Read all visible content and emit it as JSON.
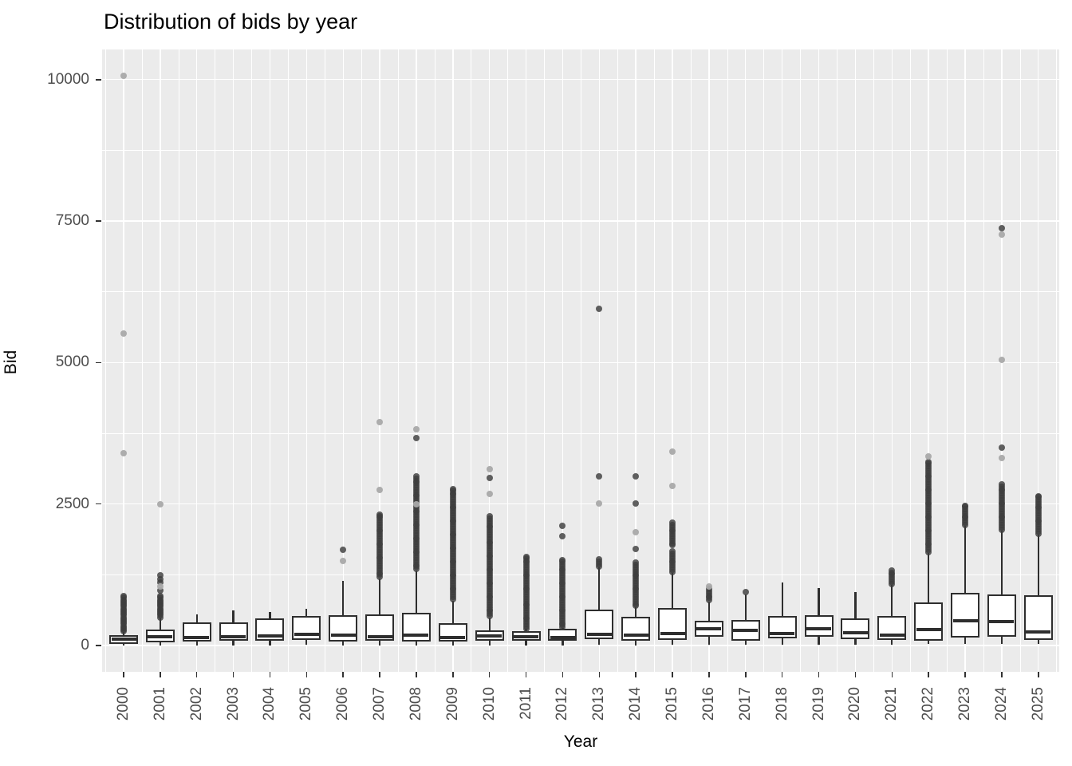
{
  "title": "Distribution of bids by year",
  "x_axis": {
    "label": "Year"
  },
  "y_axis": {
    "label": "Bid"
  },
  "colors": {
    "panel_bg": "#ebebeb",
    "grid": "#ffffff",
    "box_border": "#2e2e2e",
    "box_fill": "#ffffff",
    "outlier_dark": "#3d3d3d",
    "outlier_light": "#a9a9a9",
    "tick_label": "#4d4d4d",
    "title_text": "#000000"
  },
  "chart_data": {
    "type": "boxplot",
    "title": "Distribution of bids by year",
    "xlabel": "Year",
    "ylabel": "Bid",
    "ylim": [
      0,
      10100
    ],
    "grid": "on",
    "y_ticks": [
      0,
      2500,
      5000,
      7500,
      10000
    ],
    "y_tick_labels": [
      "0",
      "2500",
      "5000",
      "7500",
      "10000"
    ],
    "y_minor_ticks": [
      1250,
      3750,
      6250,
      8750
    ],
    "categories": [
      "2000",
      "2001",
      "2002",
      "2003",
      "2004",
      "2005",
      "2006",
      "2007",
      "2008",
      "2009",
      "2010",
      "2011",
      "2012",
      "2013",
      "2014",
      "2015",
      "2016",
      "2017",
      "2018",
      "2019",
      "2020",
      "2021",
      "2022",
      "2023",
      "2024",
      "2025"
    ],
    "boxes": [
      {
        "year": "2000",
        "q1": 25,
        "median": 115,
        "q3": 180,
        "whisker_low": 0,
        "whisker_high": 240,
        "outliers": [
          250,
          281,
          312,
          343,
          374,
          405,
          436,
          467,
          498,
          529,
          560,
          591,
          622,
          653,
          684,
          715,
          746,
          777,
          808,
          839,
          870
        ],
        "outliers_light": [
          3405,
          5520,
          10070
        ]
      },
      {
        "year": "2001",
        "q1": 55,
        "median": 155,
        "q3": 280,
        "whisker_low": 5,
        "whisker_high": 490,
        "outliers": [
          500,
          531,
          562,
          593,
          624,
          655,
          686,
          717,
          748,
          779,
          810,
          841,
          872,
          975,
          1110,
          1175,
          1245
        ],
        "outliers_light": [
          1045,
          2490
        ]
      },
      {
        "year": "2002",
        "q1": 70,
        "median": 135,
        "q3": 405,
        "whisker_low": 5,
        "whisker_high": 550,
        "outliers": [],
        "outliers_light": []
      },
      {
        "year": "2003",
        "q1": 85,
        "median": 150,
        "q3": 415,
        "whisker_low": 5,
        "whisker_high": 620,
        "outliers": [],
        "outliers_light": []
      },
      {
        "year": "2004",
        "q1": 90,
        "median": 170,
        "q3": 480,
        "whisker_low": 5,
        "whisker_high": 590,
        "outliers": [],
        "outliers_light": []
      },
      {
        "year": "2005",
        "q1": 100,
        "median": 195,
        "q3": 520,
        "whisker_low": 10,
        "whisker_high": 650,
        "outliers": [],
        "outliers_light": []
      },
      {
        "year": "2006",
        "q1": 75,
        "median": 185,
        "q3": 530,
        "whisker_low": 5,
        "whisker_high": 1140,
        "outliers": [
          1690
        ],
        "outliers_light": [
          1500
        ]
      },
      {
        "year": "2007",
        "q1": 90,
        "median": 150,
        "q3": 550,
        "whisker_low": 5,
        "whisker_high": 1190,
        "outliers": [
          1210,
          1250,
          1290,
          1330,
          1370,
          1410,
          1450,
          1490,
          1530,
          1570,
          1610,
          1650,
          1690,
          1730,
          1770,
          1810,
          1850,
          1890,
          1930,
          1970,
          2010,
          2050,
          2090,
          2130,
          2170,
          2210,
          2250,
          2290,
          2310
        ],
        "outliers_light": [
          2755,
          3945
        ]
      },
      {
        "year": "2008",
        "q1": 70,
        "median": 185,
        "q3": 580,
        "whisker_low": 5,
        "whisker_high": 1330,
        "outliers": [
          1350,
          1390,
          1430,
          1470,
          1510,
          1550,
          1590,
          1630,
          1670,
          1710,
          1750,
          1790,
          1830,
          1870,
          1910,
          1950,
          1990,
          2030,
          2070,
          2110,
          2150,
          2190,
          2230,
          2270,
          2310,
          2350,
          2390,
          2430,
          2470,
          2510,
          2550,
          2590,
          2630,
          2670,
          2710,
          2750,
          2790,
          2830,
          2870,
          2910,
          2950,
          2990,
          3670
        ],
        "outliers_light": [
          2500,
          3825
        ]
      },
      {
        "year": "2009",
        "q1": 75,
        "median": 135,
        "q3": 400,
        "whisker_low": 5,
        "whisker_high": 790,
        "outliers": [
          820,
          860,
          900,
          940,
          980,
          1020,
          1060,
          1100,
          1140,
          1180,
          1220,
          1260,
          1300,
          1340,
          1380,
          1420,
          1460,
          1500,
          1540,
          1580,
          1620,
          1660,
          1700,
          1740,
          1780,
          1820,
          1860,
          1900,
          1940,
          1980,
          2020,
          2060,
          2100,
          2140,
          2180,
          2220,
          2260,
          2300,
          2340,
          2380,
          2420,
          2460,
          2500,
          2540,
          2580,
          2620,
          2660,
          2700,
          2740,
          2760
        ],
        "outliers_light": []
      },
      {
        "year": "2010",
        "q1": 85,
        "median": 165,
        "q3": 265,
        "whisker_low": 5,
        "whisker_high": 500,
        "outliers": [
          520,
          560,
          600,
          640,
          680,
          720,
          760,
          800,
          840,
          880,
          920,
          960,
          1000,
          1040,
          1080,
          1120,
          1160,
          1200,
          1240,
          1280,
          1320,
          1360,
          1400,
          1440,
          1480,
          1520,
          1560,
          1600,
          1640,
          1680,
          1720,
          1760,
          1800,
          1840,
          1880,
          1920,
          1960,
          2000,
          2040,
          2080,
          2120,
          2160,
          2200,
          2240,
          2280,
          2955
        ],
        "outliers_light": [
          2685,
          3115
        ]
      },
      {
        "year": "2011",
        "q1": 85,
        "median": 155,
        "q3": 255,
        "whisker_low": 5,
        "whisker_high": 290,
        "outliers": [
          300,
          340,
          380,
          420,
          460,
          500,
          540,
          580,
          620,
          660,
          700,
          740,
          780,
          820,
          860,
          900,
          940,
          980,
          1020,
          1060,
          1100,
          1140,
          1180,
          1220,
          1260,
          1300,
          1340,
          1380,
          1420,
          1460,
          1500,
          1540,
          1560
        ],
        "outliers_light": []
      },
      {
        "year": "2012",
        "q1": 85,
        "median": 145,
        "q3": 295,
        "whisker_low": 5,
        "whisker_high": 310,
        "outliers": [
          320,
          360,
          400,
          440,
          480,
          520,
          560,
          600,
          640,
          680,
          720,
          760,
          800,
          840,
          880,
          920,
          960,
          1000,
          1040,
          1080,
          1120,
          1160,
          1200,
          1240,
          1280,
          1320,
          1360,
          1400,
          1440,
          1480,
          1510,
          1935,
          2120
        ],
        "outliers_light": []
      },
      {
        "year": "2013",
        "q1": 115,
        "median": 195,
        "q3": 635,
        "whisker_low": 10,
        "whisker_high": 1380,
        "outliers": [
          1400,
          1440,
          1480,
          1520,
          2990,
          5950
        ],
        "outliers_light": [
          2505
        ]
      },
      {
        "year": "2014",
        "q1": 85,
        "median": 180,
        "q3": 505,
        "whisker_low": 5,
        "whisker_high": 680,
        "outliers": [
          700,
          740,
          780,
          820,
          860,
          900,
          940,
          980,
          1020,
          1060,
          1100,
          1140,
          1180,
          1220,
          1260,
          1300,
          1340,
          1380,
          1420,
          1460,
          1710,
          2505,
          2990
        ],
        "outliers_light": [
          2000
        ]
      },
      {
        "year": "2015",
        "q1": 100,
        "median": 210,
        "q3": 660,
        "whisker_low": 10,
        "whisker_high": 1290,
        "outliers": [
          1300,
          1340,
          1380,
          1420,
          1460,
          1500,
          1540,
          1580,
          1620,
          1660,
          1770,
          1810,
          1850,
          1890,
          1930,
          1970,
          2010,
          2050,
          2090,
          2130,
          2170
        ],
        "outliers_light": [
          2825,
          3420
        ]
      },
      {
        "year": "2016",
        "q1": 155,
        "median": 295,
        "q3": 435,
        "whisker_low": 20,
        "whisker_high": 780,
        "outliers": [
          800,
          840,
          880,
          920,
          960,
          1000
        ],
        "outliers_light": [
          1040
        ]
      },
      {
        "year": "2017",
        "q1": 80,
        "median": 265,
        "q3": 450,
        "whisker_low": 10,
        "whisker_high": 900,
        "outliers": [
          950
        ],
        "outliers_light": []
      },
      {
        "year": "2018",
        "q1": 125,
        "median": 215,
        "q3": 525,
        "whisker_low": 15,
        "whisker_high": 1110,
        "outliers": [],
        "outliers_light": []
      },
      {
        "year": "2019",
        "q1": 160,
        "median": 300,
        "q3": 540,
        "whisker_low": 20,
        "whisker_high": 1010,
        "outliers": [],
        "outliers_light": []
      },
      {
        "year": "2020",
        "q1": 110,
        "median": 225,
        "q3": 475,
        "whisker_low": 15,
        "whisker_high": 940,
        "outliers": [],
        "outliers_light": []
      },
      {
        "year": "2021",
        "q1": 95,
        "median": 190,
        "q3": 525,
        "whisker_low": 10,
        "whisker_high": 1065,
        "outliers": [
          1090,
          1130,
          1170,
          1210,
          1250,
          1290,
          1320
        ],
        "outliers_light": []
      },
      {
        "year": "2022",
        "q1": 90,
        "median": 285,
        "q3": 760,
        "whisker_low": 25,
        "whisker_high": 1640,
        "outliers": [
          1650,
          1690,
          1730,
          1770,
          1810,
          1850,
          1890,
          1930,
          1970,
          2010,
          2050,
          2090,
          2130,
          2170,
          2210,
          2250,
          2290,
          2330,
          2370,
          2410,
          2450,
          2490,
          2530,
          2570,
          2610,
          2650,
          2690,
          2730,
          2770,
          2810,
          2850,
          2890,
          2930,
          2970,
          3010,
          3050,
          3090,
          3130,
          3170,
          3210,
          3250
        ],
        "outliers_light": [
          3335
        ]
      },
      {
        "year": "2023",
        "q1": 140,
        "median": 435,
        "q3": 935,
        "whisker_low": 30,
        "whisker_high": 2120,
        "outliers": [
          2130,
          2170,
          2210,
          2250,
          2290,
          2330,
          2370,
          2410,
          2450,
          2470
        ],
        "outliers_light": []
      },
      {
        "year": "2024",
        "q1": 150,
        "median": 425,
        "q3": 900,
        "whisker_low": 30,
        "whisker_high": 2030,
        "outliers": [
          2050,
          2090,
          2130,
          2170,
          2210,
          2250,
          2290,
          2330,
          2370,
          2410,
          2450,
          2490,
          2530,
          2570,
          2610,
          2650,
          2690,
          2730,
          2770,
          2810,
          2850,
          3495,
          7380
        ],
        "outliers_light": [
          3320,
          5045,
          7260
        ]
      },
      {
        "year": "2025",
        "q1": 105,
        "median": 245,
        "q3": 890,
        "whisker_low": 30,
        "whisker_high": 1960,
        "outliers": [
          1980,
          2020,
          2060,
          2100,
          2140,
          2180,
          2220,
          2260,
          2300,
          2340,
          2380,
          2420,
          2460,
          2500,
          2540,
          2580,
          2620,
          2640
        ],
        "outliers_light": []
      }
    ]
  }
}
